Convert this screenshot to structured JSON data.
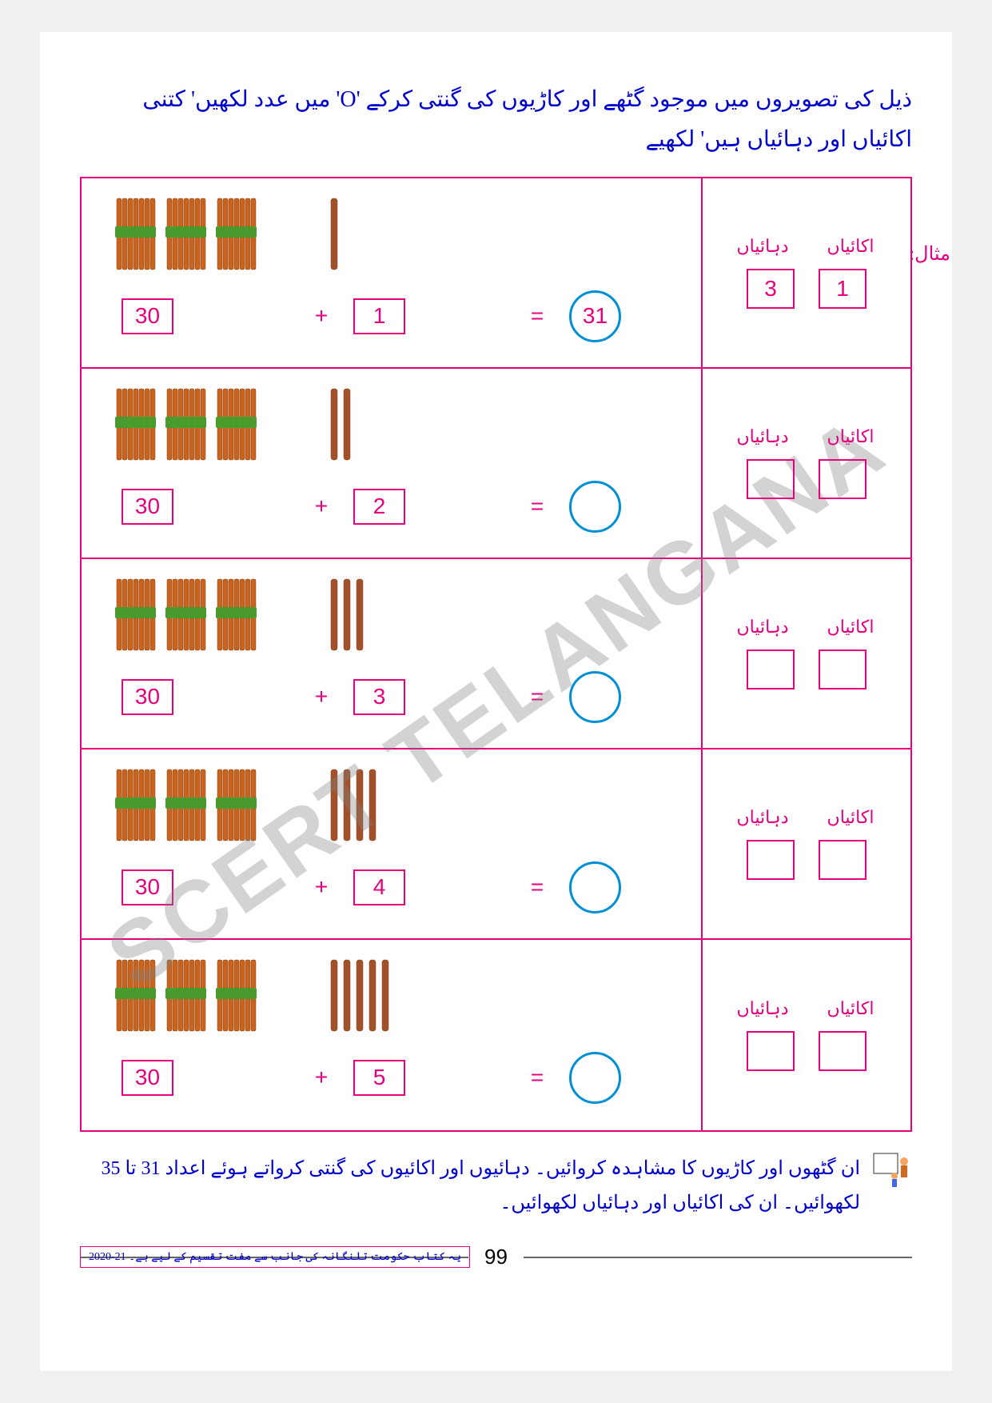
{
  "instruction": "ذیل کی تصویروں میں موجود گٹھے اور کاڑیوں کی گنتی کرکے 'O' میں عدد لکھیں' کتنی اکائیاں اور دہائیاں ہیں' لکھیے",
  "example_label": "مثال:",
  "units_label": "اکائیاں",
  "tens_label": "دہائیاں",
  "watermark": "SCERT TELANGANA",
  "rows": [
    {
      "bundles": 3,
      "sticks": 1,
      "tens_val": "30",
      "ones_val": "1",
      "result": "31",
      "pv_tens": "3",
      "pv_ones": "1"
    },
    {
      "bundles": 3,
      "sticks": 2,
      "tens_val": "30",
      "ones_val": "2",
      "result": "",
      "pv_tens": "",
      "pv_ones": ""
    },
    {
      "bundles": 3,
      "sticks": 3,
      "tens_val": "30",
      "ones_val": "3",
      "result": "",
      "pv_tens": "",
      "pv_ones": ""
    },
    {
      "bundles": 3,
      "sticks": 4,
      "tens_val": "30",
      "ones_val": "4",
      "result": "",
      "pv_tens": "",
      "pv_ones": ""
    },
    {
      "bundles": 3,
      "sticks": 5,
      "tens_val": "30",
      "ones_val": "5",
      "result": "",
      "pv_tens": "",
      "pv_ones": ""
    }
  ],
  "footer_instruction": "ان گٹھوں اور کاڑیوں کا مشاہدہ کروائیں۔ دہائیوں اور اکائیوں کی گنتی کرواتے ہوئے اعداد 31 تا 35 لکھوائیں۔ ان کی اکائیاں اور دہائیاں لکھوائیں۔",
  "page_number": "99",
  "copyright": "یہ کتاب حکومت تلنگانہ کی جانب سے مفت تقسیم کے لیے ہے۔ 21-2020",
  "colors": {
    "magenta": "#e6007e",
    "blue": "#0000cc",
    "circle_blue": "#008fd5",
    "bundle_orange": "#c8641e",
    "bundle_dark": "#8b3a0f",
    "band_green": "#4a9b2e",
    "stick_brown": "#a0522d"
  }
}
